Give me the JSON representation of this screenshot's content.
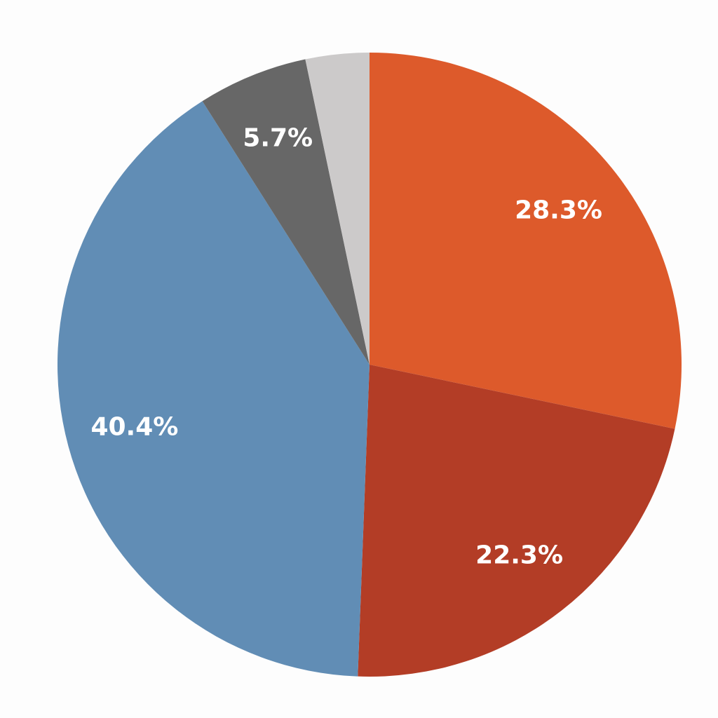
{
  "chart_data": {
    "type": "pie",
    "values": [
      28.3,
      22.3,
      40.4,
      5.7,
      3.3
    ],
    "value_labels": [
      "28.3%",
      "22.3%",
      "40.4%",
      "5.7%",
      null
    ],
    "colors": [
      "#dd5a2b",
      "#b33d26",
      "#618db5",
      "#676767",
      "#cccaca"
    ]
  }
}
